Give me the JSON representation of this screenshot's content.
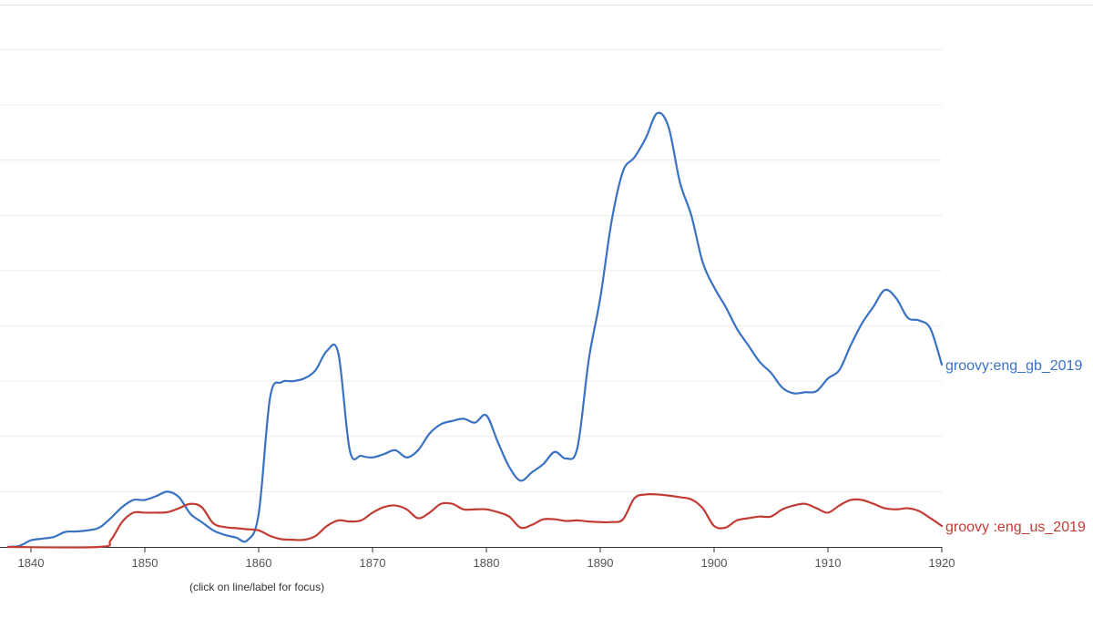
{
  "chart_data": {
    "type": "line",
    "title": "",
    "xlabel": "",
    "ylabel": "",
    "xlim": [
      1838,
      1920
    ],
    "ylim": [
      0,
      9.8
    ],
    "grid": true,
    "x_ticks": [
      1840,
      1850,
      1860,
      1870,
      1880,
      1890,
      1900,
      1910,
      1920
    ],
    "y_grid": [
      1,
      2,
      3,
      4,
      5,
      6,
      7,
      8,
      9
    ],
    "series": [
      {
        "name": "groovy:eng_gb_2019",
        "label": "groovy:eng_gb_2019",
        "color": "#3a72c3",
        "points": [
          [
            1838,
            0.0
          ],
          [
            1839,
            0.02
          ],
          [
            1840,
            0.12
          ],
          [
            1841,
            0.15
          ],
          [
            1842,
            0.18
          ],
          [
            1843,
            0.27
          ],
          [
            1844,
            0.28
          ],
          [
            1845,
            0.3
          ],
          [
            1846,
            0.35
          ],
          [
            1847,
            0.52
          ],
          [
            1848,
            0.72
          ],
          [
            1849,
            0.85
          ],
          [
            1850,
            0.85
          ],
          [
            1851,
            0.92
          ],
          [
            1852,
            1.0
          ],
          [
            1853,
            0.9
          ],
          [
            1854,
            0.6
          ],
          [
            1855,
            0.45
          ],
          [
            1856,
            0.3
          ],
          [
            1857,
            0.22
          ],
          [
            1858,
            0.17
          ],
          [
            1859,
            0.12
          ],
          [
            1860,
            0.6
          ],
          [
            1861,
            2.7
          ],
          [
            1862,
            2.98
          ],
          [
            1863,
            3.0
          ],
          [
            1864,
            3.05
          ],
          [
            1865,
            3.2
          ],
          [
            1866,
            3.55
          ],
          [
            1867,
            3.5
          ],
          [
            1868,
            1.75
          ],
          [
            1869,
            1.65
          ],
          [
            1870,
            1.62
          ],
          [
            1871,
            1.68
          ],
          [
            1872,
            1.75
          ],
          [
            1873,
            1.62
          ],
          [
            1874,
            1.75
          ],
          [
            1875,
            2.05
          ],
          [
            1876,
            2.22
          ],
          [
            1877,
            2.28
          ],
          [
            1878,
            2.32
          ],
          [
            1879,
            2.25
          ],
          [
            1880,
            2.38
          ],
          [
            1881,
            1.9
          ],
          [
            1882,
            1.45
          ],
          [
            1883,
            1.2
          ],
          [
            1884,
            1.35
          ],
          [
            1885,
            1.5
          ],
          [
            1886,
            1.72
          ],
          [
            1887,
            1.6
          ],
          [
            1888,
            1.8
          ],
          [
            1889,
            3.4
          ],
          [
            1890,
            4.5
          ],
          [
            1891,
            5.9
          ],
          [
            1892,
            6.8
          ],
          [
            1893,
            7.05
          ],
          [
            1894,
            7.4
          ],
          [
            1895,
            7.85
          ],
          [
            1896,
            7.6
          ],
          [
            1897,
            6.6
          ],
          [
            1898,
            6.0
          ],
          [
            1899,
            5.15
          ],
          [
            1900,
            4.7
          ],
          [
            1901,
            4.35
          ],
          [
            1902,
            3.95
          ],
          [
            1903,
            3.65
          ],
          [
            1904,
            3.35
          ],
          [
            1905,
            3.15
          ],
          [
            1906,
            2.88
          ],
          [
            1907,
            2.78
          ],
          [
            1908,
            2.8
          ],
          [
            1909,
            2.82
          ],
          [
            1910,
            3.05
          ],
          [
            1911,
            3.2
          ],
          [
            1912,
            3.65
          ],
          [
            1913,
            4.05
          ],
          [
            1914,
            4.35
          ],
          [
            1915,
            4.65
          ],
          [
            1916,
            4.5
          ],
          [
            1917,
            4.15
          ],
          [
            1918,
            4.1
          ],
          [
            1919,
            3.95
          ],
          [
            1920,
            3.3
          ]
        ]
      },
      {
        "name": "groovy :eng_us_2019",
        "label": "groovy :eng_us_2019",
        "color": "#c23b33",
        "points": [
          [
            1838,
            0.0
          ],
          [
            1846,
            0.0
          ],
          [
            1847,
            0.12
          ],
          [
            1848,
            0.45
          ],
          [
            1849,
            0.62
          ],
          [
            1850,
            0.62
          ],
          [
            1851,
            0.62
          ],
          [
            1852,
            0.63
          ],
          [
            1853,
            0.7
          ],
          [
            1854,
            0.78
          ],
          [
            1855,
            0.72
          ],
          [
            1856,
            0.43
          ],
          [
            1857,
            0.36
          ],
          [
            1858,
            0.34
          ],
          [
            1859,
            0.32
          ],
          [
            1860,
            0.3
          ],
          [
            1861,
            0.2
          ],
          [
            1862,
            0.14
          ],
          [
            1863,
            0.13
          ],
          [
            1864,
            0.13
          ],
          [
            1865,
            0.2
          ],
          [
            1866,
            0.38
          ],
          [
            1867,
            0.48
          ],
          [
            1868,
            0.46
          ],
          [
            1869,
            0.48
          ],
          [
            1870,
            0.62
          ],
          [
            1871,
            0.72
          ],
          [
            1872,
            0.75
          ],
          [
            1873,
            0.68
          ],
          [
            1874,
            0.52
          ],
          [
            1875,
            0.62
          ],
          [
            1876,
            0.78
          ],
          [
            1877,
            0.78
          ],
          [
            1878,
            0.68
          ],
          [
            1879,
            0.68
          ],
          [
            1880,
            0.68
          ],
          [
            1881,
            0.63
          ],
          [
            1882,
            0.55
          ],
          [
            1883,
            0.35
          ],
          [
            1884,
            0.4
          ],
          [
            1885,
            0.5
          ],
          [
            1886,
            0.5
          ],
          [
            1887,
            0.47
          ],
          [
            1888,
            0.48
          ],
          [
            1889,
            0.46
          ],
          [
            1890,
            0.45
          ],
          [
            1891,
            0.45
          ],
          [
            1892,
            0.5
          ],
          [
            1893,
            0.88
          ],
          [
            1894,
            0.95
          ],
          [
            1895,
            0.95
          ],
          [
            1896,
            0.93
          ],
          [
            1897,
            0.9
          ],
          [
            1898,
            0.86
          ],
          [
            1899,
            0.7
          ],
          [
            1900,
            0.38
          ],
          [
            1901,
            0.35
          ],
          [
            1902,
            0.48
          ],
          [
            1903,
            0.52
          ],
          [
            1904,
            0.55
          ],
          [
            1905,
            0.55
          ],
          [
            1906,
            0.68
          ],
          [
            1907,
            0.75
          ],
          [
            1908,
            0.78
          ],
          [
            1909,
            0.7
          ],
          [
            1910,
            0.62
          ],
          [
            1911,
            0.75
          ],
          [
            1912,
            0.85
          ],
          [
            1913,
            0.85
          ],
          [
            1914,
            0.78
          ],
          [
            1915,
            0.7
          ],
          [
            1916,
            0.68
          ],
          [
            1917,
            0.7
          ],
          [
            1918,
            0.65
          ],
          [
            1919,
            0.52
          ],
          [
            1920,
            0.38
          ]
        ]
      }
    ]
  },
  "hint_text": "(click on line/label for focus)"
}
